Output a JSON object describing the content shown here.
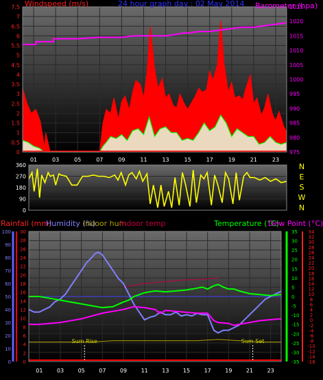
{
  "colors": {
    "wind_avg": "#00ff00",
    "gust": "#ff0000",
    "wind_fill": "#e8ffe0",
    "barometer": "#ff00ff",
    "direction": "#ffff00",
    "rainfall": "#ff0000",
    "humidity": "#8080ff",
    "indoor_hum": "#b0a000",
    "indoor_temp": "#c00040",
    "temperature": "#00ff00",
    "dew_point": "#ff00ff",
    "accent_blue": "#6060ff",
    "label_red": "#ff2020",
    "title_blue": "#3030ff",
    "grid": "#2a2a2a",
    "panel_top": "#6a6a6a",
    "panel_bottom": "#000000",
    "zero_line": "#4040ff",
    "sun_line": "#ffffff",
    "sun_text": "#d0d000"
  },
  "chart_data": [
    {
      "id": "wind_baro",
      "type": "line",
      "title": "24 hour graph day : 02 May 2014",
      "left_axis_label": "Windspeed (m/s)",
      "right_axis_label": "Barometer (hpa)",
      "x_ticks": [
        "01",
        "03",
        "05",
        "07",
        "09",
        "11",
        "13",
        "15",
        "17",
        "19",
        "21",
        "23"
      ],
      "left_ticks": [
        "0",
        "0.5",
        "1",
        "1.5",
        "2",
        "2.5",
        "3",
        "3.5",
        "4",
        "4.5",
        "5",
        "5.5",
        "6",
        "6.5",
        "7",
        "7.5"
      ],
      "right_ticks": [
        "975",
        "980",
        "985",
        "990",
        "995",
        "1000",
        "1005",
        "1010",
        "1015",
        "1020",
        "1025"
      ],
      "ylim_left": [
        0,
        7.5
      ],
      "ylim_right": [
        975,
        1025
      ],
      "xlim": [
        0,
        24
      ],
      "series": [
        {
          "key": "windspeed",
          "hours": [
            0,
            0.5,
            1,
            1.5,
            2,
            2.5,
            3,
            4,
            5,
            6,
            7,
            7.3,
            7.6,
            8,
            8.5,
            9,
            9.5,
            10,
            10.5,
            11,
            11.5,
            12,
            12.5,
            13,
            13.5,
            14,
            14.5,
            15,
            15.5,
            16,
            16.5,
            17,
            17.5,
            18,
            18.5,
            19,
            19.5,
            20,
            20.5,
            21,
            21.5,
            22,
            22.5,
            23,
            23.5,
            24
          ],
          "values": [
            0.6,
            0.5,
            0.3,
            0.2,
            0,
            0,
            0,
            0,
            0,
            0,
            0,
            0.3,
            0.5,
            0.8,
            0.7,
            0.9,
            0.6,
            1.1,
            1.2,
            0.9,
            1.8,
            0.8,
            1.2,
            1.3,
            1.0,
            1.0,
            0.6,
            0.7,
            0.6,
            1.0,
            1.5,
            1.1,
            1.3,
            1.9,
            1.5,
            0.8,
            1.2,
            1.0,
            0.8,
            0.8,
            0.4,
            0.5,
            0.8,
            0.5,
            0.4,
            0.5
          ]
        },
        {
          "key": "gust",
          "hours": [
            0,
            0.4,
            0.8,
            1.2,
            1.6,
            2,
            2.1,
            2.5,
            3,
            4,
            5,
            6,
            7,
            7.3,
            7.6,
            8,
            8.3,
            8.7,
            9,
            9.3,
            9.7,
            10,
            10.3,
            10.7,
            11,
            11.3,
            11.6,
            12,
            12.3,
            12.7,
            13,
            13.3,
            13.7,
            14,
            14.3,
            14.7,
            15,
            15.3,
            15.7,
            16,
            16.3,
            16.7,
            17,
            17.3,
            17.7,
            18,
            18.3,
            18.7,
            19,
            19.3,
            19.7,
            20,
            20.3,
            20.7,
            21,
            21.3,
            21.7,
            22,
            22.3,
            22.7,
            23,
            23.3,
            23.7,
            24
          ],
          "values": [
            3.3,
            2.5,
            2.0,
            2.2,
            1.6,
            0.2,
            1.0,
            0,
            0,
            0,
            0,
            0,
            0,
            1.5,
            2.2,
            2.0,
            2.8,
            1.7,
            2.6,
            2.9,
            2.2,
            3.1,
            3.7,
            3.5,
            2.8,
            4.1,
            6.5,
            4.3,
            3.3,
            3.8,
            2.8,
            3.0,
            2.4,
            2.3,
            3.0,
            2.5,
            2.2,
            2.5,
            2.9,
            3.3,
            3.1,
            3.2,
            4.2,
            3.7,
            4.5,
            6.8,
            4.6,
            3.1,
            3.6,
            2.8,
            2.9,
            2.7,
            3.3,
            4.0,
            2.5,
            2.8,
            1.9,
            2.3,
            3.0,
            2.0,
            1.6,
            2.1,
            1.4,
            1.0
          ]
        },
        {
          "key": "barometer",
          "hours": [
            0,
            1.2,
            1.2,
            2.8,
            2.8,
            5,
            7,
            9,
            10,
            11,
            13,
            14,
            14.5,
            15,
            16,
            17,
            18,
            19,
            20,
            21,
            22,
            23,
            24
          ],
          "values": [
            1012,
            1012,
            1013,
            1013,
            1014,
            1014,
            1014.5,
            1014.5,
            1015,
            1015,
            1015,
            1015.5,
            1016,
            1016,
            1016.5,
            1016.5,
            1017,
            1017.5,
            1018,
            1018,
            1018.5,
            1019,
            1019.5
          ]
        }
      ]
    },
    {
      "id": "direction",
      "type": "line",
      "left_ticks": [
        "0",
        "90",
        "180",
        "270",
        "360"
      ],
      "right_ticks": [
        "N",
        "W",
        "S",
        "E",
        "N"
      ],
      "ylim": [
        0,
        360
      ],
      "xlim": [
        0,
        24
      ],
      "series": [
        {
          "key": "wind_direction",
          "hours": [
            0,
            0.3,
            0.5,
            0.8,
            1,
            1.2,
            1.5,
            1.8,
            2,
            2.3,
            2.5,
            2.8,
            3,
            3.5,
            4,
            4.5,
            5,
            5.5,
            6,
            6.5,
            7,
            7.5,
            8,
            8.3,
            8.6,
            9,
            9.3,
            9.6,
            10,
            10.3,
            10.6,
            11,
            11.3,
            11.6,
            12,
            12.3,
            12.6,
            13,
            13.3,
            13.6,
            14,
            14.3,
            14.6,
            15,
            15.3,
            15.6,
            16,
            16.3,
            16.6,
            17,
            17.3,
            17.6,
            18,
            18.3,
            18.6,
            19,
            19.3,
            19.6,
            20,
            20.3,
            20.6,
            21,
            21.5,
            22,
            22.5,
            23,
            23.5,
            24
          ],
          "values": [
            250,
            300,
            150,
            330,
            100,
            280,
            220,
            300,
            270,
            280,
            200,
            290,
            280,
            270,
            200,
            200,
            270,
            270,
            280,
            270,
            270,
            260,
            280,
            240,
            300,
            200,
            280,
            300,
            250,
            310,
            230,
            290,
            50,
            200,
            20,
            200,
            30,
            150,
            20,
            260,
            40,
            300,
            200,
            30,
            320,
            60,
            280,
            250,
            300,
            40,
            280,
            200,
            60,
            300,
            250,
            50,
            300,
            80,
            270,
            300,
            260,
            260,
            240,
            260,
            230,
            250,
            220,
            230
          ]
        }
      ]
    },
    {
      "id": "temp_hum",
      "type": "line",
      "labels": {
        "rainfall": "Rainfall (mm)",
        "humidity": "Humidity (%)",
        "indoor_hum": "Indoor hum",
        "indoor_temp": "Indoor temp",
        "temperature": "Temperature (°C)",
        "dew_point": "Dew Point (°C)"
      },
      "annotations": {
        "sun_rise": "Sum Rise",
        "sun_set": "Sum Set",
        "sun_rise_hour": 5.3,
        "sun_set_hour": 21.3
      },
      "x_ticks": [
        "01",
        "03",
        "05",
        "07",
        "09",
        "11",
        "13",
        "15",
        "17",
        "19",
        "21",
        "23"
      ],
      "humidity_ticks": [
        "0",
        "10",
        "20",
        "30",
        "40",
        "50",
        "60",
        "70",
        "80",
        "90",
        "100"
      ],
      "rain_ticks": [
        "0",
        "2",
        "4",
        "6",
        "8",
        "10",
        "12",
        "14",
        "16",
        "18",
        "20",
        "22",
        "24",
        "26",
        "28",
        "30"
      ],
      "temp_ticks": [
        "-35",
        "-30",
        "-25",
        "-20",
        "-15",
        "-10",
        "-5",
        "0",
        "5",
        "10",
        "15",
        "20",
        "25",
        "30",
        "35"
      ],
      "dew_ticks": [
        "-16",
        "-14",
        "-12",
        "-10",
        "-8",
        "-6",
        "-4",
        "-2",
        "0",
        "2",
        "4",
        "6",
        "8",
        "10",
        "12",
        "14",
        "16",
        "18",
        "20",
        "22",
        "24",
        "26",
        "28",
        "30",
        "32",
        "34"
      ],
      "ylim_temp": [
        -35,
        35
      ],
      "ylim_hum": [
        0,
        100
      ],
      "xlim": [
        0,
        24
      ],
      "series": [
        {
          "key": "humidity",
          "hours": [
            0,
            0.5,
            1,
            1.5,
            2,
            2.5,
            3,
            3.5,
            4,
            4.5,
            5,
            5.5,
            6,
            6.3,
            6.6,
            7,
            7.5,
            8,
            8.5,
            9,
            9.5,
            10,
            10.5,
            11,
            11.5,
            12,
            12.5,
            13,
            13.5,
            14,
            14.5,
            15,
            15.5,
            16,
            16.5,
            17,
            17.3,
            17.6,
            18,
            18.5,
            19,
            19.5,
            20,
            20.5,
            21,
            21.5,
            22,
            22.5,
            23,
            23.5,
            24
          ],
          "values": [
            40,
            38,
            38,
            40,
            42,
            46,
            48,
            52,
            58,
            64,
            70,
            76,
            80,
            83,
            84,
            82,
            76,
            70,
            64,
            60,
            52,
            44,
            38,
            32,
            34,
            35,
            38,
            36,
            36,
            38,
            35,
            36,
            35,
            37,
            36,
            36,
            30,
            24,
            22,
            24,
            24,
            26,
            28,
            32,
            36,
            40,
            44,
            48,
            50,
            52,
            54
          ]
        },
        {
          "key": "temperature",
          "hours": [
            0,
            1,
            2,
            3,
            4,
            5,
            6,
            7,
            8,
            9,
            9.5,
            10,
            10.5,
            11,
            11.5,
            12,
            13,
            14,
            15,
            16,
            16.5,
            17,
            17.5,
            18,
            18.5,
            19,
            19.5,
            20,
            21,
            22,
            23,
            24
          ],
          "values": [
            0,
            0,
            -1,
            -2,
            -3,
            -4,
            -5,
            -6,
            -5.5,
            -3,
            -2,
            0,
            1,
            2,
            2.5,
            3,
            2.5,
            3,
            3.5,
            4.5,
            5,
            4,
            5.5,
            6.5,
            5,
            4,
            4,
            3,
            1.5,
            1,
            0.5,
            1
          ]
        },
        {
          "key": "dew_point",
          "hours": [
            0,
            1,
            2,
            3,
            4,
            5,
            6,
            7,
            8,
            9,
            10,
            11,
            12,
            12.5,
            13,
            14,
            15,
            16,
            17,
            17.3,
            17.6,
            18,
            19,
            19.5,
            20,
            21,
            22,
            23,
            24
          ],
          "values": [
            -15,
            -15,
            -14.5,
            -14,
            -13,
            -12,
            -10.5,
            -9,
            -8,
            -7,
            -5.5,
            -6,
            -7,
            -9,
            -7.5,
            -8,
            -8.5,
            -9,
            -9,
            -11,
            -13,
            -14,
            -14.5,
            -15.5,
            -15,
            -14,
            -13,
            -12.5,
            -12
          ]
        },
        {
          "key": "indoor_hum",
          "hours": [
            0,
            2,
            4,
            6,
            8,
            10,
            12,
            14,
            16,
            18,
            20,
            22,
            24
          ],
          "values": [
            15,
            15,
            15,
            15,
            16,
            16,
            16,
            16,
            16,
            17,
            16,
            15,
            15
          ]
        },
        {
          "key": "indoor_temp",
          "hours": [
            9,
            10,
            11,
            12,
            13,
            14,
            15,
            16,
            17,
            18
          ],
          "values": [
            5,
            6,
            7,
            7.5,
            8,
            8.5,
            9,
            9,
            9.5,
            10
          ]
        }
      ]
    }
  ]
}
